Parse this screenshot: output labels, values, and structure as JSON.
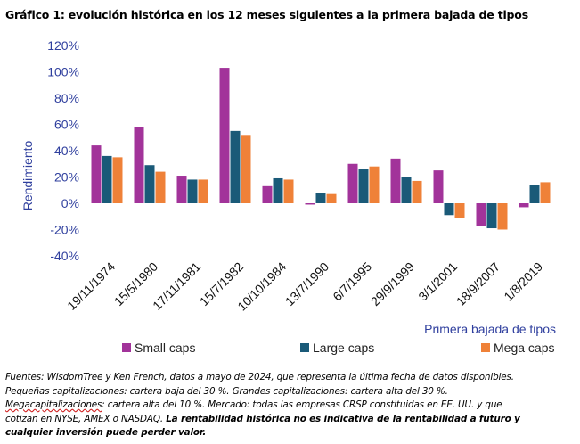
{
  "title": "Gráfico 1: evolución histórica en los 12 meses siguientes a la primera bajada de tipos",
  "chart_data": {
    "type": "bar",
    "categories": [
      "19/11/1974",
      "15/5/1980",
      "17/11/1981",
      "15/7/1982",
      "10/10/1984",
      "13/7/1990",
      "6/7/1995",
      "29/9/1999",
      "3/1/2001",
      "18/9/2007",
      "1/8/2019"
    ],
    "series": [
      {
        "name": "Small caps",
        "color": "#a2339a",
        "values": [
          44,
          58,
          21,
          103,
          13,
          -1,
          30,
          34,
          25,
          -17,
          -3
        ]
      },
      {
        "name": "Large caps",
        "color": "#1a5a78",
        "values": [
          36,
          29,
          18,
          55,
          19,
          8,
          26,
          20,
          -9,
          -19,
          14
        ]
      },
      {
        "name": "Mega caps",
        "color": "#ef8138",
        "values": [
          35,
          24,
          18,
          52,
          18,
          7,
          28,
          17,
          -11,
          -20,
          16
        ]
      }
    ],
    "ylabel": "Rendimiento",
    "xlabel": "Primera bajada de tipos",
    "ylim": [
      -40,
      120
    ],
    "yticks": [
      -40,
      -20,
      0,
      20,
      40,
      60,
      80,
      100,
      120
    ],
    "ytick_labels": [
      "-40%",
      "-20%",
      "0%",
      "20%",
      "40%",
      "60%",
      "80%",
      "100%",
      "120%"
    ],
    "legend_position": "bottom"
  },
  "footnote": {
    "line1": "Fuentes: WisdomTree y Ken French, datos a mayo de 2024, que representa la última fecha de datos disponibles.",
    "line2": "Pequeñas capitalizaciones: cartera baja del 30 %. Grandes capitalizaciones: cartera alta del 30 %.",
    "line3_underlined": "Megacapitalizaciones",
    "line3_rest": ": cartera alta del 10 %. Mercado: todas las empresas CRSP constituidas en EE. UU. y que",
    "line4_normal": "cotizan en NYSE, AMEX o NASDAQ. ",
    "line4_bold": "La rentabilidad histórica no es indicativa de la rentabilidad a futuro y",
    "line5_bold": "cualquier inversión puede perder valor."
  }
}
